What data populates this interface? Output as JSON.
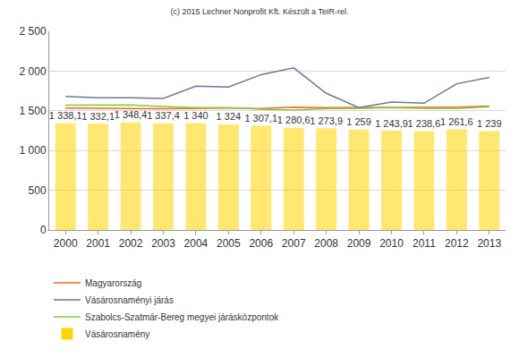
{
  "chart_data": {
    "type": "bar",
    "title": "(c) 2015 Lechner Nonprofit Kft. Készült a TeIR-rel.",
    "categories": [
      "2000",
      "2001",
      "2002",
      "2003",
      "2004",
      "2005",
      "2006",
      "2007",
      "2008",
      "2009",
      "2010",
      "2011",
      "2012",
      "2013"
    ],
    "series": [
      {
        "name": "Magyarország",
        "color": "#f26a1b",
        "type": "line",
        "line_style": "solid",
        "values": [
          1535,
          1535,
          1530,
          1525,
          1530,
          1535,
          1530,
          1545,
          1540,
          1540,
          1540,
          1545,
          1545,
          1560
        ]
      },
      {
        "name": "Vásárosnaményi járás",
        "color": "#667a99",
        "type": "line",
        "line_style": "solid",
        "values": [
          1680,
          1665,
          1665,
          1655,
          1810,
          1800,
          1955,
          2040,
          1720,
          1540,
          1610,
          1595,
          1840,
          1920
        ]
      },
      {
        "name": "Szabolcs-Szatmár-Bereg megyei járásközpontok",
        "color": "#8cc63e",
        "type": "line",
        "line_style": "solid",
        "values": [
          1570,
          1575,
          1575,
          1555,
          1540,
          1540,
          1520,
          1510,
          1530,
          1530,
          1540,
          1530,
          1530,
          1550
        ]
      },
      {
        "name": "Vásárosnamény",
        "color": "#ffd400",
        "type": "bar",
        "values": [
          1338.1,
          1332.1,
          1348.4,
          1337.4,
          1340,
          1324,
          1307.1,
          1280.6,
          1273.9,
          1259,
          1243.9,
          1238.6,
          1261.6,
          1239
        ],
        "value_labels": [
          "1 338,1",
          "1 332,1",
          "1 348,4",
          "1 337,4",
          "1 340",
          "1 324",
          "1 307,1",
          "1 280,6",
          "1 273,9",
          "1 259",
          "1 243,9",
          "1 238,6",
          "1 261,6",
          "1 239"
        ]
      }
    ],
    "ylim": [
      0,
      2500
    ],
    "yticks": [
      0,
      500,
      {
        "value": 1000,
        "label": "1 000"
      },
      {
        "value": 1500,
        "label": "1 500"
      },
      {
        "value": 2000,
        "label": "2 000"
      },
      {
        "value": 2500,
        "label": "2 500"
      }
    ],
    "grid": true,
    "legend": "bottom left",
    "data_labels": true
  }
}
